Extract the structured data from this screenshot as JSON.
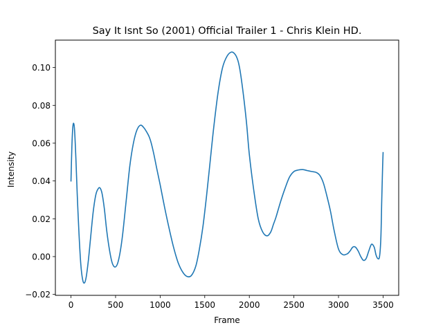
{
  "chart_data": {
    "type": "line",
    "title": "Say It Isnt So (2001) Official Trailer  1 - Chris Klein HD.",
    "xlabel": "Frame",
    "ylabel": "Intensity",
    "xlim": [
      -175,
      3675
    ],
    "ylim": [
      -0.0205,
      0.1145
    ],
    "xticks": [
      0,
      500,
      1000,
      1500,
      2000,
      2500,
      3000,
      3500
    ],
    "xtick_labels": [
      "0",
      "500",
      "1000",
      "1500",
      "2000",
      "2500",
      "3000",
      "3500"
    ],
    "yticks": [
      -0.02,
      0.0,
      0.02,
      0.04,
      0.06,
      0.08,
      0.1
    ],
    "ytick_labels": [
      "−0.02",
      "0.00",
      "0.02",
      "0.04",
      "0.06",
      "0.08",
      "0.10"
    ],
    "grid": false,
    "series": [
      {
        "color": "#1f77b4",
        "x": [
          0,
          10,
          20,
          30,
          40,
          55,
          70,
          90,
          110,
          130,
          150,
          170,
          195,
          220,
          250,
          280,
          310,
          330,
          350,
          375,
          400,
          430,
          460,
          490,
          520,
          550,
          580,
          620,
          660,
          700,
          740,
          780,
          820,
          860,
          880,
          900,
          930,
          960,
          1000,
          1050,
          1100,
          1150,
          1200,
          1250,
          1300,
          1350,
          1400,
          1440,
          1480,
          1520,
          1560,
          1600,
          1650,
          1700,
          1750,
          1800,
          1840,
          1870,
          1890,
          1910,
          1940,
          1970,
          2000,
          2050,
          2100,
          2150,
          2200,
          2240,
          2270,
          2300,
          2350,
          2400,
          2450,
          2500,
          2550,
          2600,
          2650,
          2700,
          2750,
          2790,
          2830,
          2870,
          2910,
          2950,
          3000,
          3050,
          3100,
          3130,
          3160,
          3190,
          3220,
          3250,
          3280,
          3310,
          3340,
          3370,
          3400,
          3420,
          3440,
          3460,
          3475,
          3485,
          3495,
          3500
        ],
        "y": [
          0.04,
          0.058,
          0.068,
          0.0705,
          0.067,
          0.052,
          0.033,
          0.012,
          -0.004,
          -0.012,
          -0.014,
          -0.011,
          -0.002,
          0.01,
          0.024,
          0.033,
          0.0362,
          0.036,
          0.033,
          0.025,
          0.014,
          0.004,
          -0.003,
          -0.0055,
          -0.004,
          0.002,
          0.012,
          0.03,
          0.048,
          0.06,
          0.067,
          0.0695,
          0.068,
          0.065,
          0.063,
          0.06,
          0.054,
          0.047,
          0.038,
          0.026,
          0.015,
          0.005,
          -0.003,
          -0.008,
          -0.0105,
          -0.01,
          -0.005,
          0.004,
          0.016,
          0.032,
          0.05,
          0.068,
          0.087,
          0.1,
          0.106,
          0.1082,
          0.107,
          0.104,
          0.1,
          0.094,
          0.083,
          0.07,
          0.054,
          0.035,
          0.02,
          0.013,
          0.011,
          0.013,
          0.017,
          0.021,
          0.029,
          0.036,
          0.042,
          0.045,
          0.0458,
          0.046,
          0.0455,
          0.045,
          0.0445,
          0.043,
          0.039,
          0.032,
          0.024,
          0.014,
          0.004,
          0.001,
          0.0015,
          0.003,
          0.005,
          0.005,
          0.003,
          0.0,
          -0.002,
          -0.001,
          0.003,
          0.0065,
          0.005,
          0.001,
          -0.001,
          0.0,
          0.01,
          0.03,
          0.048,
          0.055
        ]
      }
    ]
  }
}
